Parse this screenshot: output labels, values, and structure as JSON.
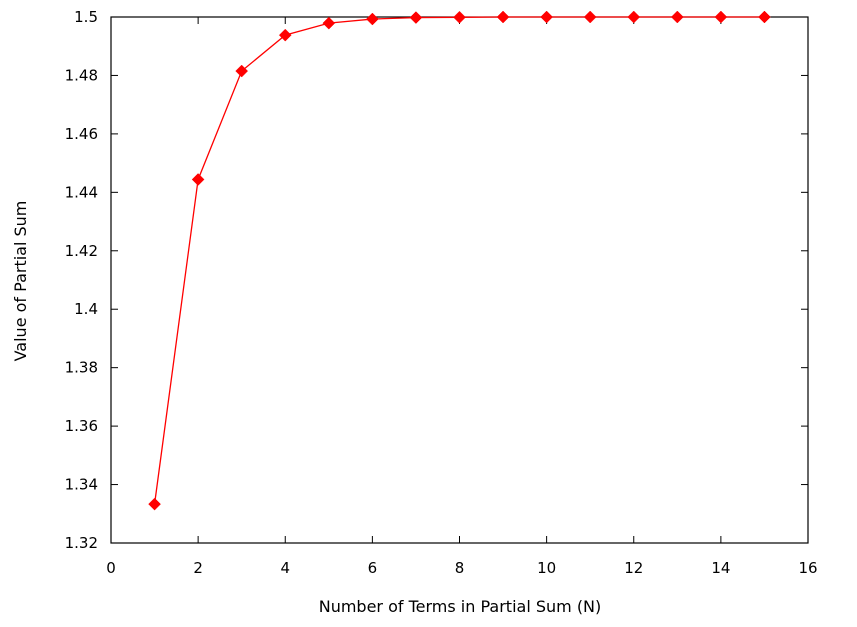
{
  "chart_data": {
    "type": "line",
    "title": "",
    "xlabel": "Number of Terms in Partial Sum (N)",
    "ylabel": "Value of Partial Sum",
    "xlim": [
      0,
      16
    ],
    "ylim": [
      1.32,
      1.5
    ],
    "xticks": [
      0,
      2,
      4,
      6,
      8,
      10,
      12,
      14,
      16
    ],
    "yticks": [
      1.32,
      1.34,
      1.36,
      1.38,
      1.4,
      1.42,
      1.44,
      1.46,
      1.48,
      1.5
    ],
    "xtick_labels": [
      "0",
      "2",
      "4",
      "6",
      "8",
      "10",
      "12",
      "14",
      "16"
    ],
    "ytick_labels": [
      "1.32",
      "1.34",
      "1.36",
      "1.38",
      "1.4",
      "1.42",
      "1.44",
      "1.46",
      "1.48",
      "1.5"
    ],
    "grid": false,
    "legend": "none",
    "series": [
      {
        "color": "#ff0000",
        "marker": "diamond",
        "x": [
          1,
          2,
          3,
          4,
          5,
          6,
          7,
          8,
          9,
          10,
          11,
          12,
          13,
          14,
          15
        ],
        "y": [
          1.3333,
          1.4444,
          1.4815,
          1.4938,
          1.4979,
          1.4993,
          1.4998,
          1.4999,
          1.5,
          1.5,
          1.5,
          1.5,
          1.5,
          1.5,
          1.5
        ]
      }
    ]
  }
}
